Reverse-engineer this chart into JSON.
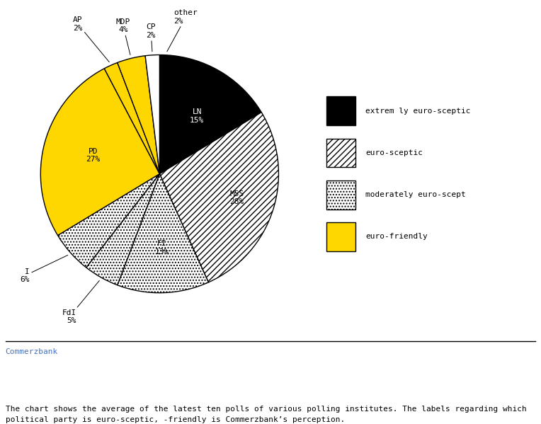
{
  "slices": [
    {
      "label": "other\n2%",
      "value": 2,
      "color": "#000000",
      "hatch": "",
      "text_color": "white",
      "inside": false
    },
    {
      "label": "LN\n15%",
      "value": 15,
      "color": "#000000",
      "hatch": "",
      "text_color": "white",
      "inside": true
    },
    {
      "label": "M5S\n28%",
      "value": 28,
      "color": "#ffffff",
      "hatch": "////",
      "text_color": "black",
      "inside": true
    },
    {
      "label": "FI\n13%",
      "value": 13,
      "color": "#ffffff",
      "hatch": "....",
      "text_color": "black",
      "inside": true
    },
    {
      "label": "FdI\n5%",
      "value": 5,
      "color": "#ffffff",
      "hatch": "....",
      "text_color": "black",
      "inside": false
    },
    {
      "label": "I\n6%",
      "value": 6,
      "color": "#ffffff",
      "hatch": "....",
      "text_color": "black",
      "inside": false
    },
    {
      "label": "PD\n27%",
      "value": 27,
      "color": "#FFD700",
      "hatch": "",
      "text_color": "black",
      "inside": true
    },
    {
      "label": "AP\n2%",
      "value": 2,
      "color": "#FFD700",
      "hatch": "",
      "text_color": "black",
      "inside": false
    },
    {
      "label": "MDP\n4%",
      "value": 4,
      "color": "#FFD700",
      "hatch": "",
      "text_color": "black",
      "inside": false
    },
    {
      "label": "CP\n2%",
      "value": 2,
      "color": "#ffffff",
      "hatch": "",
      "text_color": "black",
      "inside": false
    }
  ],
  "legend_entries": [
    {
      "label": "extrem ly euro-sceptic",
      "color": "#000000",
      "hatch": ""
    },
    {
      "label": "euro-sceptic",
      "color": "#ffffff",
      "hatch": "////"
    },
    {
      "label": "moderately euro-scept",
      "color": "#ffffff",
      "hatch": "...."
    },
    {
      "label": "euro-friendly",
      "color": "#FFD700",
      "hatch": ""
    }
  ],
  "source_text": "Commerzbank",
  "footnote": "The chart shows the average of the latest ten polls of various polling institutes. The labels regarding which\npolitical party is euro-sceptic, -friendly is Commerzbank’s perception.",
  "background_color": "#ffffff",
  "label_font_size": 8,
  "legend_font_size": 8,
  "source_font_size": 8,
  "footnote_font_size": 8
}
